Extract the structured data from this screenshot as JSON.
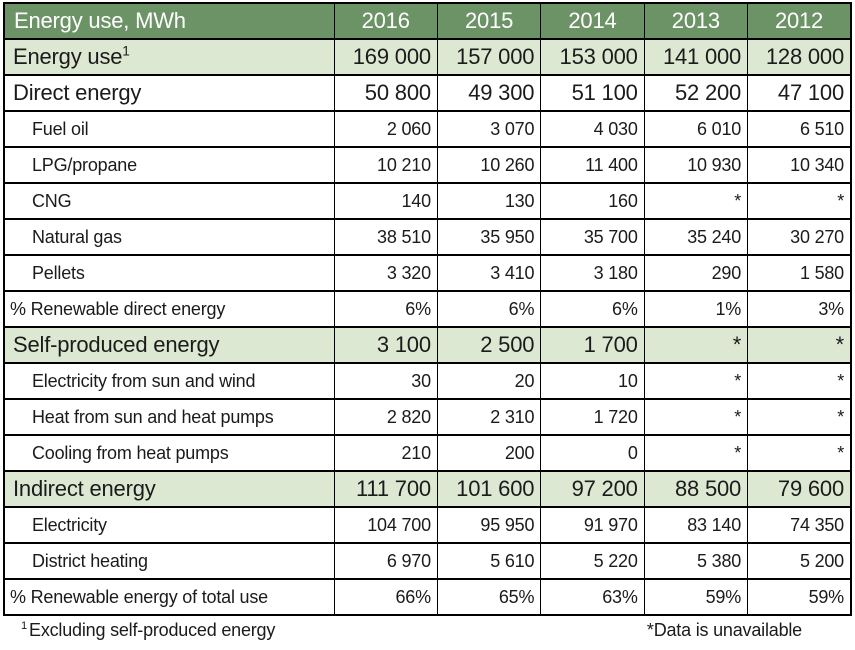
{
  "chart_data": {
    "type": "table",
    "title": "Energy use, MWh",
    "columns": [
      "2016",
      "2015",
      "2014",
      "2013",
      "2012"
    ],
    "rows": [
      {
        "label": "Energy use",
        "sup": "1",
        "style": "section-green",
        "values": [
          "169 000",
          "157 000",
          "153 000",
          "141 000",
          "128 000"
        ]
      },
      {
        "label": "Direct energy",
        "style": "section-white",
        "values": [
          "50 800",
          "49 300",
          "51 100",
          "52 200",
          "47 100"
        ]
      },
      {
        "label": "Fuel oil",
        "style": "sub",
        "values": [
          "2 060",
          "3 070",
          "4 030",
          "6 010",
          "6 510"
        ]
      },
      {
        "label": "LPG/propane",
        "style": "sub",
        "values": [
          "10 210",
          "10 260",
          "11 400",
          "10 930",
          "10 340"
        ]
      },
      {
        "label": "CNG",
        "style": "sub",
        "values": [
          "140",
          "130",
          "160",
          "*",
          "*"
        ]
      },
      {
        "label": "Natural gas",
        "style": "sub",
        "values": [
          "38 510",
          "35 950",
          "35 700",
          "35 240",
          "30 270"
        ]
      },
      {
        "label": "Pellets",
        "style": "sub",
        "values": [
          "3 320",
          "3 410",
          "3 180",
          "290",
          "1 580"
        ]
      },
      {
        "label": "% Renewable direct energy",
        "style": "pct",
        "values": [
          "6%",
          "6%",
          "6%",
          "1%",
          "3%"
        ]
      },
      {
        "label": "Self-produced energy",
        "style": "section-green",
        "values": [
          "3 100",
          "2 500",
          "1 700",
          "*",
          "*"
        ]
      },
      {
        "label": "Electricity from sun and wind",
        "style": "sub",
        "values": [
          "30",
          "20",
          "10",
          "*",
          "*"
        ]
      },
      {
        "label": "Heat from sun and heat pumps",
        "style": "sub",
        "values": [
          "2 820",
          "2 310",
          "1 720",
          "*",
          "*"
        ]
      },
      {
        "label": "Cooling from heat pumps",
        "style": "sub",
        "values": [
          "210",
          "200",
          "0",
          "*",
          "*"
        ]
      },
      {
        "label": "Indirect energy",
        "style": "section-green",
        "values": [
          "111 700",
          "101 600",
          "97 200",
          "88 500",
          "79 600"
        ]
      },
      {
        "label": "Electricity",
        "style": "sub",
        "values": [
          "104 700",
          "95 950",
          "91 970",
          "83 140",
          "74 350"
        ]
      },
      {
        "label": "District heating",
        "style": "sub",
        "values": [
          "6 970",
          "5 610",
          "5 220",
          "5 380",
          "5 200"
        ]
      },
      {
        "label": "% Renewable energy of total use",
        "style": "pct",
        "values": [
          "66%",
          "65%",
          "63%",
          "59%",
          "59%"
        ]
      }
    ],
    "layout": {
      "first_column_header": "Energy use, MWh",
      "value_alignment": "right",
      "grid": true
    }
  },
  "footnotes": {
    "left_sup": "1",
    "left_text": "Excluding self-produced energy",
    "right_text": "*Data is unavailable"
  },
  "colors": {
    "header_bg": "#6c9366",
    "section_bg": "#dce8d2",
    "border": "#000000",
    "header_text": "#ffffff"
  }
}
